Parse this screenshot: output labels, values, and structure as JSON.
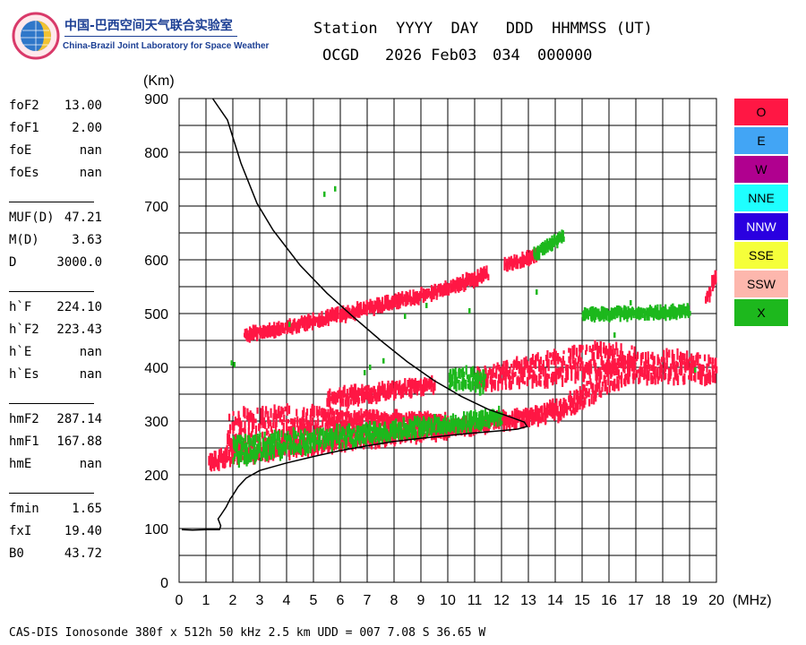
{
  "logo": {
    "cn_name": "中国-巴西空间天气联合实验室",
    "en_name": "China-Brazil Joint Laboratory for Space Weather",
    "icon": "globe-logo-icon"
  },
  "header": {
    "line1": "Station  YYYY  DAY   DDD  HHMMSS (UT)",
    "station": "OCGD",
    "date": "2026 Feb03",
    "day": "034",
    "time": "000000"
  },
  "params": [
    {
      "name": "foF2",
      "value": "13.00"
    },
    {
      "name": "foF1",
      "value": "2.00"
    },
    {
      "name": "foE",
      "value": "nan"
    },
    {
      "name": "foEs",
      "value": "nan"
    },
    {
      "name": "MUF(D)",
      "value": "47.21"
    },
    {
      "name": "M(D)",
      "value": "3.63"
    },
    {
      "name": "D",
      "value": "3000.0"
    },
    {
      "name": "h`F",
      "value": "224.10"
    },
    {
      "name": "h`F2",
      "value": "223.43"
    },
    {
      "name": "h`E",
      "value": "nan"
    },
    {
      "name": "h`Es",
      "value": "nan"
    },
    {
      "name": "hmF2",
      "value": "287.14"
    },
    {
      "name": "hmF1",
      "value": "167.88"
    },
    {
      "name": "hmE",
      "value": "nan"
    },
    {
      "name": "fmin",
      "value": "1.65"
    },
    {
      "name": "fxI",
      "value": "19.40"
    },
    {
      "name": "B0",
      "value": "43.72"
    }
  ],
  "legend": [
    {
      "label": "O",
      "color": "#ff1744"
    },
    {
      "label": "E",
      "color": "#42a5f5"
    },
    {
      "label": "W",
      "color": "#b0008f"
    },
    {
      "label": "NNE",
      "color": "#1effff"
    },
    {
      "label": "NNW",
      "color": "#2a00e0"
    },
    {
      "label": "SSE",
      "color": "#f5ff3a"
    },
    {
      "label": "SSW",
      "color": "#fdb7ad"
    },
    {
      "label": "X",
      "color": "#1db81d"
    }
  ],
  "chart_data": {
    "type": "scatter",
    "xlabel": "(MHz)",
    "ylabel": "(Km)",
    "xlim": [
      0,
      20
    ],
    "ylim": [
      0,
      900
    ],
    "xticks": [
      0,
      1,
      2,
      3,
      4,
      5,
      6,
      7,
      8,
      9,
      10,
      11,
      12,
      13,
      14,
      15,
      16,
      17,
      18,
      19,
      20
    ],
    "yticks": [
      0,
      100,
      200,
      300,
      400,
      500,
      600,
      700,
      800,
      900
    ],
    "grid": true,
    "profile": {
      "color": "#000000",
      "points": [
        [
          0.1,
          98
        ],
        [
          0.5,
          97
        ],
        [
          1.0,
          98
        ],
        [
          1.5,
          98
        ],
        [
          1.55,
          105
        ],
        [
          1.45,
          118
        ],
        [
          1.55,
          125
        ],
        [
          1.75,
          140
        ],
        [
          1.9,
          155
        ],
        [
          2.0,
          162
        ],
        [
          2.2,
          178
        ],
        [
          2.5,
          194
        ],
        [
          3.0,
          208
        ],
        [
          4.0,
          222
        ],
        [
          5.0,
          234
        ],
        [
          6.0,
          245
        ],
        [
          7.0,
          254
        ],
        [
          8.0,
          262
        ],
        [
          9.0,
          268
        ],
        [
          10.0,
          273
        ],
        [
          11.0,
          278
        ],
        [
          12.0,
          282
        ],
        [
          12.6,
          285
        ],
        [
          12.95,
          290
        ],
        [
          12.85,
          298
        ],
        [
          12.3,
          308
        ],
        [
          11.5,
          322
        ],
        [
          10.5,
          346
        ],
        [
          9.5,
          375
        ],
        [
          8.5,
          410
        ],
        [
          7.5,
          450
        ],
        [
          6.5,
          493
        ],
        [
          5.5,
          538
        ],
        [
          4.5,
          590
        ],
        [
          3.5,
          655
        ],
        [
          2.9,
          705
        ],
        [
          2.3,
          780
        ],
        [
          1.8,
          860
        ],
        [
          1.25,
          900
        ]
      ]
    },
    "series": [
      {
        "name": "O",
        "color": "#ff1744",
        "traces": [
          {
            "kind": "band",
            "points": [
              [
                1.1,
                222
              ],
              [
                1.6,
                230
              ],
              [
                2,
                238
              ],
              [
                3,
                245
              ],
              [
                4,
                252
              ],
              [
                5,
                258
              ],
              [
                6,
                264
              ],
              [
                7,
                270
              ],
              [
                8,
                276
              ],
              [
                9,
                282
              ],
              [
                10,
                287
              ],
              [
                11,
                293
              ],
              [
                12,
                300
              ],
              [
                13,
                308
              ],
              [
                14,
                320
              ],
              [
                14.5,
                330
              ],
              [
                15,
                345
              ],
              [
                15.5,
                365
              ],
              [
                16,
                385
              ],
              [
                17,
                398
              ],
              [
                18,
                400
              ],
              [
                19,
                398
              ],
              [
                20,
                395
              ]
            ],
            "spread": [
              12,
              14,
              15,
              15,
              15,
              15,
              15,
              15,
              14,
              14,
              13,
              13,
              12,
              12,
              14,
              16,
              18,
              24,
              26,
              26,
              26,
              26,
              24
            ]
          },
          {
            "kind": "band",
            "points": [
              [
                1.8,
                285
              ],
              [
                3,
                292
              ],
              [
                4,
                298
              ],
              [
                5,
                300
              ],
              [
                6,
                300
              ],
              [
                7,
                300
              ],
              [
                8,
                300
              ],
              [
                9,
                300
              ],
              [
                10,
                300
              ]
            ],
            "spread": [
              35,
              30,
              26,
              22,
              18,
              15,
              12,
              10,
              8
            ]
          },
          {
            "kind": "band",
            "points": [
              [
                11,
                380
              ],
              [
                12,
                385
              ],
              [
                13,
                392
              ],
              [
                14,
                400
              ],
              [
                15,
                410
              ],
              [
                16,
                415
              ],
              [
                17,
                412
              ]
            ],
            "spread": [
              14,
              22,
              26,
              28,
              30,
              28,
              24
            ]
          },
          {
            "kind": "band",
            "points": [
              [
                2.4,
                458
              ],
              [
                3,
                465
              ],
              [
                4,
                475
              ],
              [
                5,
                487
              ],
              [
                6,
                498
              ],
              [
                7,
                510
              ],
              [
                8,
                522
              ],
              [
                9,
                533
              ],
              [
                10,
                548
              ],
              [
                11,
                565
              ],
              [
                11.5,
                575
              ]
            ],
            "spread": [
              7,
              7,
              7,
              7,
              7,
              7,
              7,
              7,
              7,
              7,
              7
            ]
          },
          {
            "kind": "band",
            "points": [
              [
                12.1,
                590
              ],
              [
                12.6,
                598
              ],
              [
                13.3,
                608
              ]
            ],
            "spread": [
              6,
              6,
              6
            ]
          },
          {
            "kind": "band",
            "points": [
              [
                5.5,
                340
              ],
              [
                6.5,
                348
              ],
              [
                7.5,
                355
              ],
              [
                8.5,
                362
              ],
              [
                9.5,
                368
              ]
            ],
            "spread": [
              10,
              12,
              12,
              10,
              8
            ]
          },
          {
            "kind": "band",
            "points": [
              [
                19.6,
                525
              ],
              [
                19.85,
                560
              ],
              [
                20,
                570
              ]
            ],
            "spread": [
              8,
              8,
              8
            ]
          }
        ]
      },
      {
        "name": "X",
        "color": "#1db81d",
        "traces": [
          {
            "kind": "band",
            "points": [
              [
                2,
                245
              ],
              [
                3,
                252
              ],
              [
                4,
                258
              ],
              [
                5,
                264
              ],
              [
                6,
                270
              ],
              [
                7,
                276
              ],
              [
                8,
                282
              ],
              [
                9,
                288
              ],
              [
                10,
                294
              ],
              [
                11,
                300
              ],
              [
                12,
                308
              ]
            ],
            "spread": [
              25,
              22,
              20,
              18,
              16,
              15,
              14,
              13,
              12,
              12,
              12
            ]
          },
          {
            "kind": "band",
            "points": [
              [
                15,
                498
              ],
              [
                16,
                500
              ],
              [
                17,
                500
              ],
              [
                18,
                502
              ],
              [
                19,
                505
              ]
            ],
            "spread": [
              6,
              6,
              6,
              6,
              6
            ]
          },
          {
            "kind": "band",
            "points": [
              [
                10,
                380
              ],
              [
                10.7,
                375
              ],
              [
                11.4,
                370
              ]
            ],
            "spread": [
              20,
              20,
              18
            ]
          },
          {
            "kind": "band",
            "points": [
              [
                13.2,
                612
              ],
              [
                14,
                635
              ],
              [
                14.3,
                645
              ]
            ],
            "spread": [
              5,
              5,
              5
            ]
          }
        ],
        "points": [
          [
            5.4,
            722
          ],
          [
            5.8,
            732
          ],
          [
            1.95,
            408
          ],
          [
            2.05,
            405
          ],
          [
            7.1,
            400
          ],
          [
            7.6,
            412
          ],
          [
            6.9,
            390
          ],
          [
            10.8,
            505
          ],
          [
            16.8,
            520
          ],
          [
            19.2,
            395
          ],
          [
            18.6,
            505
          ],
          [
            13.3,
            540
          ],
          [
            4.1,
            480
          ],
          [
            9.2,
            515
          ],
          [
            8.4,
            495
          ],
          [
            16.2,
            460
          ]
        ]
      }
    ]
  },
  "footer": "CAS-DIS Ionosonde 380f x 512h 50 kHz 2.5 km UDD = 007 7.08 S 36.65 W"
}
